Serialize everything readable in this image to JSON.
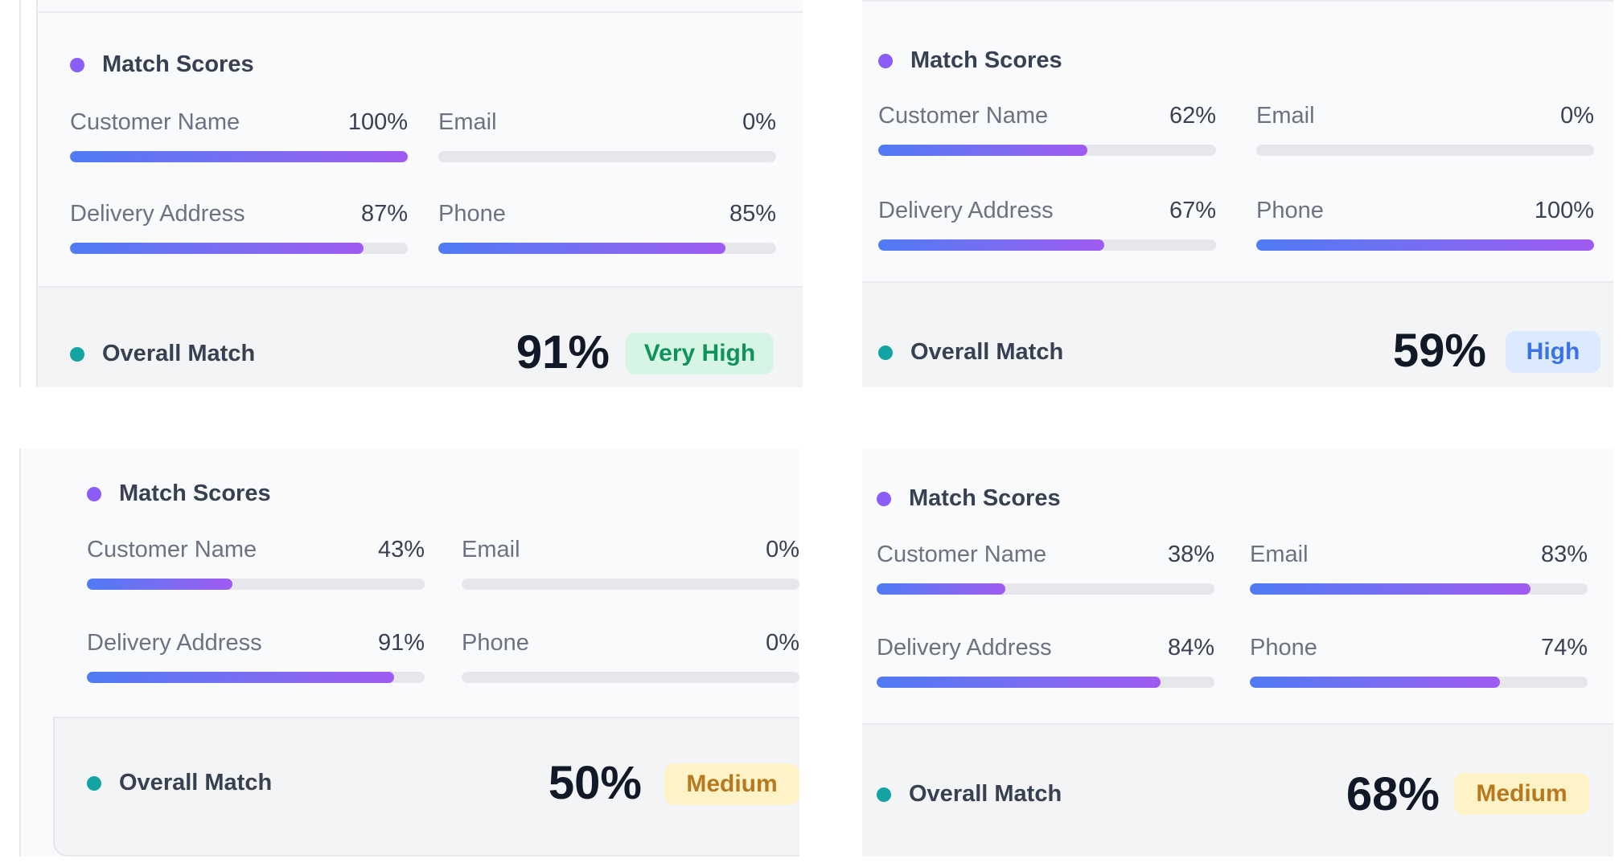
{
  "colors": {
    "accent_dot_scores": "#8b5cf6",
    "accent_dot_overall": "#14a3a3",
    "bar_gradient_start": "#4f7bf5",
    "bar_gradient_end": "#a05af2",
    "badge_very_high_bg": "#d6f5e4",
    "badge_high_bg": "#dbeafe",
    "badge_medium_bg": "#fdf3c7"
  },
  "cards": [
    {
      "scores_title": "Match Scores",
      "fields": [
        {
          "label": "Customer Name",
          "value": "100%",
          "fraction": 1.0
        },
        {
          "label": "Email",
          "value": "0%",
          "fraction": 0.0
        },
        {
          "label": "Delivery Address",
          "value": "87%",
          "fraction": 0.87
        },
        {
          "label": "Phone",
          "value": "85%",
          "fraction": 0.85
        }
      ],
      "overall_title": "Overall Match",
      "overall_value": "91%",
      "badge": "Very High",
      "badge_kind": "very-high"
    },
    {
      "scores_title": "Match Scores",
      "fields": [
        {
          "label": "Customer Name",
          "value": "62%",
          "fraction": 0.62
        },
        {
          "label": "Email",
          "value": "0%",
          "fraction": 0.0
        },
        {
          "label": "Delivery Address",
          "value": "67%",
          "fraction": 0.67
        },
        {
          "label": "Phone",
          "value": "100%",
          "fraction": 1.0
        }
      ],
      "overall_title": "Overall Match",
      "overall_value": "59%",
      "badge": "High",
      "badge_kind": "high"
    },
    {
      "scores_title": "Match Scores",
      "fields": [
        {
          "label": "Customer Name",
          "value": "43%",
          "fraction": 0.43
        },
        {
          "label": "Email",
          "value": "0%",
          "fraction": 0.0
        },
        {
          "label": "Delivery Address",
          "value": "91%",
          "fraction": 0.91
        },
        {
          "label": "Phone",
          "value": "0%",
          "fraction": 0.0
        }
      ],
      "overall_title": "Overall Match",
      "overall_value": "50%",
      "badge": "Medium",
      "badge_kind": "medium"
    },
    {
      "scores_title": "Match Scores",
      "fields": [
        {
          "label": "Customer Name",
          "value": "38%",
          "fraction": 0.38
        },
        {
          "label": "Email",
          "value": "83%",
          "fraction": 0.83
        },
        {
          "label": "Delivery Address",
          "value": "84%",
          "fraction": 0.84
        },
        {
          "label": "Phone",
          "value": "74%",
          "fraction": 0.74
        }
      ],
      "overall_title": "Overall Match",
      "overall_value": "68%",
      "badge": "Medium",
      "badge_kind": "medium"
    }
  ]
}
